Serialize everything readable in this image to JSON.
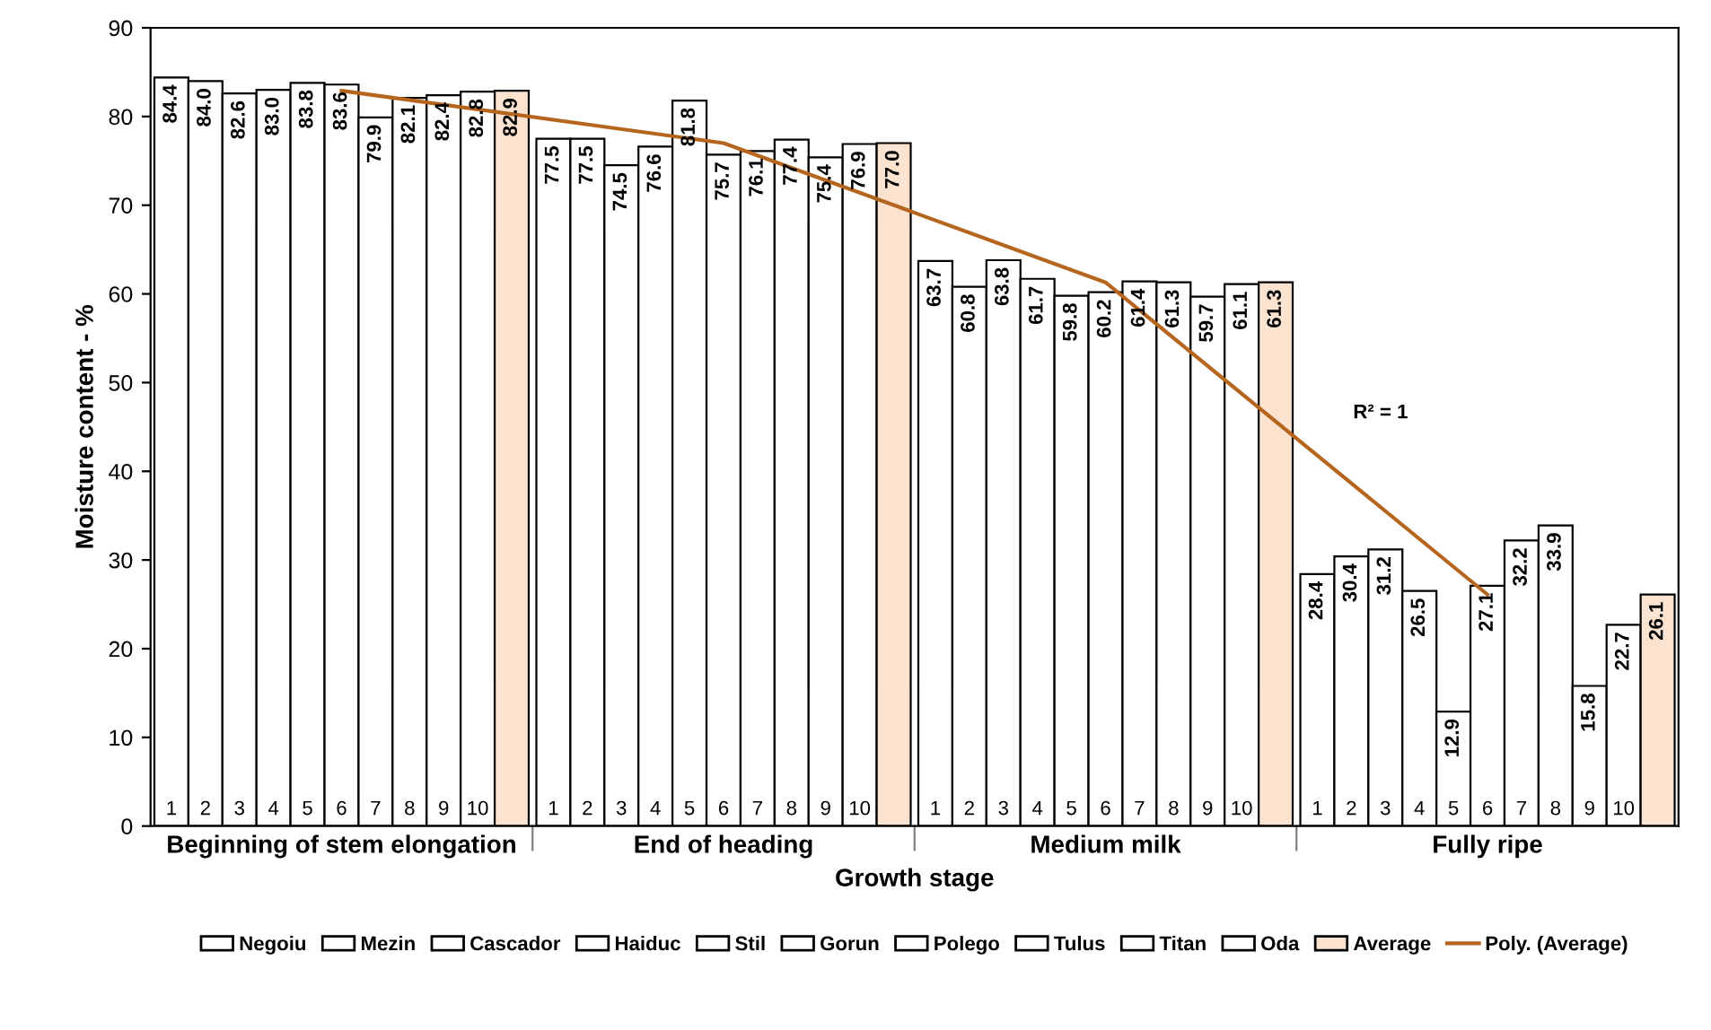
{
  "chart_data": {
    "type": "bar",
    "xlabel": "Growth stage",
    "ylabel": "Moisture content - %",
    "categories": [
      "Beginning of stem elongation",
      "End of heading",
      "Medium milk",
      "Fully ripe"
    ],
    "series": [
      {
        "name": "Negoiu",
        "color": "#ffffff",
        "values": [
          84.4,
          77.5,
          63.7,
          28.4
        ],
        "value_labels": [
          "84.4",
          "77.5",
          "63.7",
          "28.4"
        ]
      },
      {
        "name": "Mezin",
        "color": "#ffffff",
        "values": [
          84.0,
          77.5,
          60.8,
          30.4
        ],
        "value_labels": [
          "84.0",
          "77.5",
          "60.8",
          "30.4"
        ]
      },
      {
        "name": "Cascador",
        "color": "#ffffff",
        "values": [
          82.6,
          74.5,
          63.8,
          31.2
        ],
        "value_labels": [
          "82.6",
          "74.5",
          "63.8",
          "31.2"
        ]
      },
      {
        "name": "Haiduc",
        "color": "#ffffff",
        "values": [
          83.0,
          76.6,
          61.7,
          26.5
        ],
        "value_labels": [
          "83.0",
          "76.6",
          "61.7",
          "26.5"
        ]
      },
      {
        "name": "Stil",
        "color": "#ffffff",
        "values": [
          83.8,
          81.8,
          59.8,
          12.9
        ],
        "value_labels": [
          "83.8",
          "81.8",
          "59.8",
          "12.9"
        ]
      },
      {
        "name": "Gorun",
        "color": "#ffffff",
        "values": [
          83.6,
          75.7,
          60.2,
          27.1
        ],
        "value_labels": [
          "83.6",
          "75.7",
          "60.2",
          "27.1"
        ]
      },
      {
        "name": "Polego",
        "color": "#ffffff",
        "values": [
          79.9,
          76.1,
          61.4,
          32.2
        ],
        "value_labels": [
          "79.9",
          "76.1",
          "61.4",
          "32.2"
        ]
      },
      {
        "name": "Tulus",
        "color": "#ffffff",
        "values": [
          82.1,
          77.4,
          61.3,
          33.9
        ],
        "value_labels": [
          "82.1",
          "77.4",
          "61.3",
          "33.9"
        ]
      },
      {
        "name": "Titan",
        "color": "#ffffff",
        "values": [
          82.4,
          75.4,
          59.7,
          15.8
        ],
        "value_labels": [
          "82.4",
          "75.4",
          "59.7",
          "15.8"
        ]
      },
      {
        "name": "Oda",
        "color": "#ffffff",
        "values": [
          82.8,
          76.9,
          61.1,
          22.7
        ],
        "value_labels": [
          "82.8",
          "76.9",
          "61.1",
          "22.7"
        ]
      },
      {
        "name": "Average",
        "color": "#fbe3d0",
        "values": [
          82.9,
          77.0,
          61.3,
          26.1
        ],
        "value_labels": [
          "82.9",
          "77.0",
          "61.3",
          "26.1"
        ]
      },
      {
        "name": "Poly. (Average)",
        "type": "line",
        "color": "#b5651d",
        "values": [
          82.9,
          77.0,
          61.3,
          26.1
        ]
      }
    ],
    "ylim": [
      0,
      90
    ],
    "yticks": [
      0,
      10,
      20,
      30,
      40,
      50,
      60,
      70,
      80,
      90
    ],
    "legend": "bottom",
    "annotations": [
      "1",
      "2",
      "3",
      "4",
      "5",
      "6",
      "7",
      "8",
      "9",
      "10",
      "R² = 1"
    ]
  }
}
